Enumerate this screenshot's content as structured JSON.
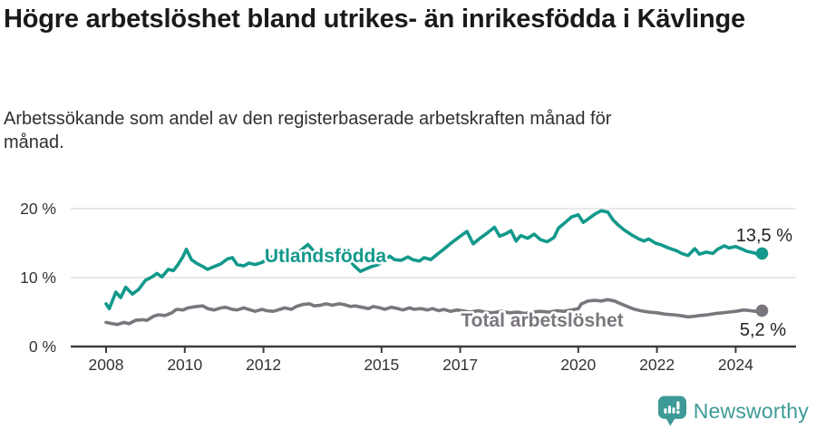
{
  "header": {
    "title": "Högre arbetslöshet bland utrikes- än inrikesfödda i Kävlinge",
    "subtitle": "Arbetssökande som andel av den registerbaserade arbetskraften månad för månad."
  },
  "footer": {
    "brand": "Newsworthy",
    "logo_icon": "bar-chart-speech-bubble-icon"
  },
  "colors": {
    "accent_teal": "#12998B",
    "series_gray": "#7B767D",
    "logo_teal": "#3D9A96",
    "gridline": "#E1E1E1",
    "axis": "#3D3D3D",
    "tick_text": "#333333",
    "value_text": "#222222"
  },
  "chart_data": {
    "type": "line",
    "unit": "%",
    "grid": "horizontal",
    "legend": "inline-labels",
    "ylim": [
      0,
      20
    ],
    "xlim": [
      2007.1,
      2025.5
    ],
    "y_ticks": [
      {
        "label": "0 %",
        "value": 0
      },
      {
        "label": "10 %",
        "value": 10
      },
      {
        "label": "20 %",
        "value": 20
      }
    ],
    "x_ticks": [
      {
        "label": "2008",
        "year": 2008
      },
      {
        "label": "2010",
        "year": 2010
      },
      {
        "label": "2012",
        "year": 2012
      },
      {
        "label": "2015",
        "year": 2015
      },
      {
        "label": "2017",
        "year": 2017
      },
      {
        "label": "2020",
        "year": 2020
      },
      {
        "label": "2022",
        "year": 2022
      },
      {
        "label": "2024",
        "year": 2024
      }
    ],
    "series": [
      {
        "name": "Utlandsfödda",
        "color": "#12998B",
        "end_label": "13,5 %",
        "end_value": 13.5,
        "points": [
          [
            2008.0,
            6.2
          ],
          [
            2008.08,
            5.5
          ],
          [
            2008.25,
            7.9
          ],
          [
            2008.37,
            7.1
          ],
          [
            2008.5,
            8.6
          ],
          [
            2008.67,
            7.6
          ],
          [
            2008.83,
            8.3
          ],
          [
            2009.0,
            9.6
          ],
          [
            2009.17,
            10.1
          ],
          [
            2009.29,
            10.6
          ],
          [
            2009.42,
            10.1
          ],
          [
            2009.58,
            11.2
          ],
          [
            2009.71,
            11.0
          ],
          [
            2009.83,
            11.9
          ],
          [
            2009.96,
            13.1
          ],
          [
            2010.04,
            14.1
          ],
          [
            2010.17,
            12.6
          ],
          [
            2010.29,
            12.1
          ],
          [
            2010.46,
            11.6
          ],
          [
            2010.58,
            11.2
          ],
          [
            2010.75,
            11.6
          ],
          [
            2010.92,
            12.0
          ],
          [
            2011.08,
            12.7
          ],
          [
            2011.21,
            12.9
          ],
          [
            2011.33,
            11.9
          ],
          [
            2011.5,
            11.7
          ],
          [
            2011.63,
            12.1
          ],
          [
            2011.79,
            11.9
          ],
          [
            2011.96,
            12.2
          ],
          [
            2012.08,
            12.6
          ],
          [
            2012.25,
            13.1
          ],
          [
            2012.42,
            12.7
          ],
          [
            2012.54,
            13.0
          ],
          [
            2012.71,
            13.2
          ],
          [
            2012.88,
            13.6
          ],
          [
            2013.0,
            14.2
          ],
          [
            2013.13,
            14.8
          ],
          [
            2013.25,
            14.0
          ],
          [
            2013.42,
            13.4
          ],
          [
            2013.54,
            13.6
          ],
          [
            2013.71,
            13.2
          ],
          [
            2013.83,
            13.4
          ],
          [
            2014.0,
            13.1
          ],
          [
            2014.17,
            12.7
          ],
          [
            2014.29,
            11.8
          ],
          [
            2014.46,
            10.9
          ],
          [
            2014.58,
            11.2
          ],
          [
            2014.75,
            11.6
          ],
          [
            2014.92,
            11.9
          ],
          [
            2015.04,
            12.4
          ],
          [
            2015.21,
            13.1
          ],
          [
            2015.33,
            12.6
          ],
          [
            2015.5,
            12.5
          ],
          [
            2015.67,
            13.0
          ],
          [
            2015.79,
            12.6
          ],
          [
            2015.96,
            12.4
          ],
          [
            2016.08,
            12.9
          ],
          [
            2016.25,
            12.6
          ],
          [
            2016.42,
            13.4
          ],
          [
            2016.58,
            14.1
          ],
          [
            2016.79,
            15.1
          ],
          [
            2017.0,
            16.0
          ],
          [
            2017.17,
            16.7
          ],
          [
            2017.33,
            14.9
          ],
          [
            2017.5,
            15.7
          ],
          [
            2017.67,
            16.4
          ],
          [
            2017.87,
            17.3
          ],
          [
            2018.0,
            16.0
          ],
          [
            2018.17,
            16.4
          ],
          [
            2018.29,
            16.8
          ],
          [
            2018.42,
            15.3
          ],
          [
            2018.54,
            16.1
          ],
          [
            2018.71,
            15.7
          ],
          [
            2018.88,
            16.3
          ],
          [
            2019.04,
            15.5
          ],
          [
            2019.21,
            15.2
          ],
          [
            2019.38,
            15.8
          ],
          [
            2019.5,
            17.2
          ],
          [
            2019.67,
            18.0
          ],
          [
            2019.83,
            18.8
          ],
          [
            2020.0,
            19.1
          ],
          [
            2020.13,
            18.0
          ],
          [
            2020.25,
            18.5
          ],
          [
            2020.42,
            19.2
          ],
          [
            2020.58,
            19.7
          ],
          [
            2020.75,
            19.5
          ],
          [
            2020.88,
            18.4
          ],
          [
            2021.0,
            17.7
          ],
          [
            2021.17,
            16.9
          ],
          [
            2021.38,
            16.1
          ],
          [
            2021.54,
            15.6
          ],
          [
            2021.67,
            15.3
          ],
          [
            2021.79,
            15.6
          ],
          [
            2021.96,
            15.0
          ],
          [
            2022.13,
            14.7
          ],
          [
            2022.29,
            14.3
          ],
          [
            2022.5,
            13.9
          ],
          [
            2022.63,
            13.5
          ],
          [
            2022.79,
            13.2
          ],
          [
            2022.96,
            14.2
          ],
          [
            2023.08,
            13.4
          ],
          [
            2023.25,
            13.7
          ],
          [
            2023.42,
            13.5
          ],
          [
            2023.54,
            14.1
          ],
          [
            2023.71,
            14.6
          ],
          [
            2023.83,
            14.3
          ],
          [
            2024.0,
            14.5
          ],
          [
            2024.17,
            14.1
          ],
          [
            2024.29,
            13.8
          ],
          [
            2024.46,
            13.6
          ],
          [
            2024.58,
            13.3
          ],
          [
            2024.67,
            13.5
          ]
        ]
      },
      {
        "name": "Total arbetslöshet",
        "color": "#7B767D",
        "end_label": "5,2 %",
        "end_value": 5.2,
        "points": [
          [
            2008.0,
            3.5
          ],
          [
            2008.17,
            3.3
          ],
          [
            2008.29,
            3.2
          ],
          [
            2008.46,
            3.5
          ],
          [
            2008.58,
            3.3
          ],
          [
            2008.75,
            3.8
          ],
          [
            2008.92,
            3.9
          ],
          [
            2009.04,
            3.8
          ],
          [
            2009.21,
            4.4
          ],
          [
            2009.33,
            4.6
          ],
          [
            2009.5,
            4.5
          ],
          [
            2009.67,
            4.9
          ],
          [
            2009.79,
            5.4
          ],
          [
            2009.96,
            5.3
          ],
          [
            2010.08,
            5.6
          ],
          [
            2010.29,
            5.8
          ],
          [
            2010.46,
            5.9
          ],
          [
            2010.58,
            5.5
          ],
          [
            2010.75,
            5.3
          ],
          [
            2010.92,
            5.6
          ],
          [
            2011.04,
            5.7
          ],
          [
            2011.21,
            5.4
          ],
          [
            2011.33,
            5.3
          ],
          [
            2011.5,
            5.6
          ],
          [
            2011.67,
            5.3
          ],
          [
            2011.79,
            5.1
          ],
          [
            2011.96,
            5.4
          ],
          [
            2012.08,
            5.2
          ],
          [
            2012.25,
            5.1
          ],
          [
            2012.42,
            5.4
          ],
          [
            2012.54,
            5.6
          ],
          [
            2012.71,
            5.4
          ],
          [
            2012.83,
            5.8
          ],
          [
            2013.0,
            6.1
          ],
          [
            2013.17,
            6.2
          ],
          [
            2013.29,
            5.9
          ],
          [
            2013.46,
            6.0
          ],
          [
            2013.58,
            6.2
          ],
          [
            2013.75,
            6.0
          ],
          [
            2013.92,
            6.2
          ],
          [
            2014.04,
            6.1
          ],
          [
            2014.21,
            5.8
          ],
          [
            2014.33,
            5.9
          ],
          [
            2014.5,
            5.7
          ],
          [
            2014.67,
            5.5
          ],
          [
            2014.79,
            5.8
          ],
          [
            2014.96,
            5.6
          ],
          [
            2015.08,
            5.4
          ],
          [
            2015.25,
            5.7
          ],
          [
            2015.42,
            5.5
          ],
          [
            2015.54,
            5.3
          ],
          [
            2015.71,
            5.6
          ],
          [
            2015.83,
            5.4
          ],
          [
            2016.0,
            5.5
          ],
          [
            2016.17,
            5.3
          ],
          [
            2016.29,
            5.5
          ],
          [
            2016.46,
            5.2
          ],
          [
            2016.58,
            5.4
          ],
          [
            2016.75,
            5.1
          ],
          [
            2016.92,
            5.3
          ],
          [
            2017.04,
            5.2
          ],
          [
            2017.25,
            5.0
          ],
          [
            2017.46,
            5.2
          ],
          [
            2017.63,
            5.0
          ],
          [
            2017.83,
            4.9
          ],
          [
            2018.04,
            5.1
          ],
          [
            2018.25,
            4.9
          ],
          [
            2018.46,
            5.0
          ],
          [
            2018.63,
            4.8
          ],
          [
            2018.83,
            5.0
          ],
          [
            2019.04,
            5.1
          ],
          [
            2019.25,
            5.0
          ],
          [
            2019.46,
            5.2
          ],
          [
            2019.63,
            5.1
          ],
          [
            2019.83,
            5.3
          ],
          [
            2020.0,
            5.5
          ],
          [
            2020.08,
            6.2
          ],
          [
            2020.25,
            6.6
          ],
          [
            2020.42,
            6.7
          ],
          [
            2020.58,
            6.6
          ],
          [
            2020.75,
            6.8
          ],
          [
            2020.92,
            6.6
          ],
          [
            2021.04,
            6.3
          ],
          [
            2021.21,
            5.9
          ],
          [
            2021.38,
            5.5
          ],
          [
            2021.58,
            5.2
          ],
          [
            2021.79,
            5.0
          ],
          [
            2022.0,
            4.9
          ],
          [
            2022.21,
            4.7
          ],
          [
            2022.42,
            4.6
          ],
          [
            2022.58,
            4.5
          ],
          [
            2022.79,
            4.3
          ],
          [
            2022.96,
            4.4
          ],
          [
            2023.08,
            4.5
          ],
          [
            2023.29,
            4.6
          ],
          [
            2023.5,
            4.8
          ],
          [
            2023.67,
            4.9
          ],
          [
            2023.83,
            5.0
          ],
          [
            2024.0,
            5.1
          ],
          [
            2024.21,
            5.3
          ],
          [
            2024.38,
            5.2
          ],
          [
            2024.5,
            5.1
          ],
          [
            2024.67,
            5.2
          ]
        ]
      }
    ]
  }
}
